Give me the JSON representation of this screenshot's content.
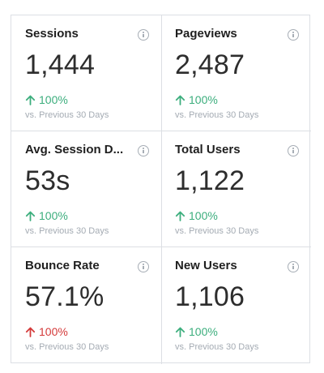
{
  "metrics": [
    {
      "title": "Sessions",
      "value": "1,444",
      "change": "100%",
      "direction": "up",
      "comparison": "vs. Previous 30 Days"
    },
    {
      "title": "Pageviews",
      "value": "2,487",
      "change": "100%",
      "direction": "up",
      "comparison": "vs. Previous 30 Days"
    },
    {
      "title": "Avg. Session D...",
      "value": "53s",
      "change": "100%",
      "direction": "up",
      "comparison": "vs. Previous 30 Days"
    },
    {
      "title": "Total Users",
      "value": "1,122",
      "change": "100%",
      "direction": "up",
      "comparison": "vs. Previous 30 Days"
    },
    {
      "title": "Bounce Rate",
      "value": "57.1%",
      "change": "100%",
      "direction": "down",
      "comparison": "vs. Previous 30 Days"
    },
    {
      "title": "New Users",
      "value": "1,106",
      "change": "100%",
      "direction": "up",
      "comparison": "vs. Previous 30 Days"
    }
  ],
  "colors": {
    "positive": "#3cae7d",
    "negative": "#d43a3a",
    "border": "#dcdfe4",
    "muted": "#a4abb3"
  },
  "icons": {
    "info": "info-circle-icon",
    "up": "arrow-up-icon"
  }
}
